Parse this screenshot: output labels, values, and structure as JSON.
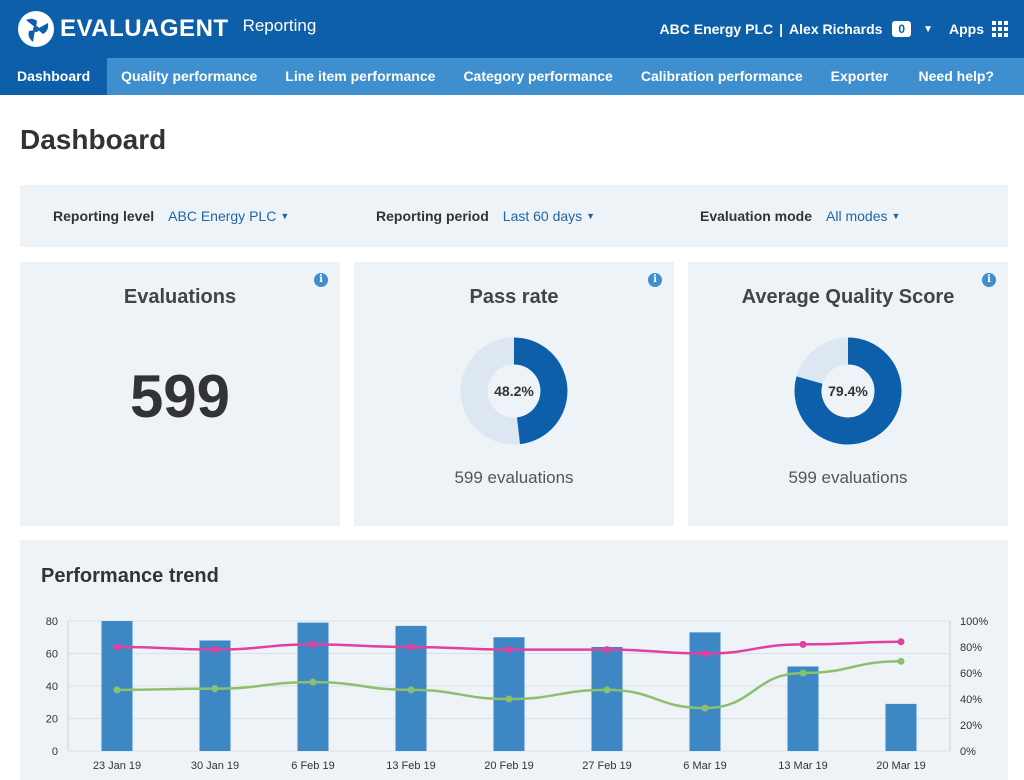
{
  "header": {
    "brand": "EVALUAGENT",
    "product": "Reporting",
    "company": "ABC Energy PLC",
    "separator": "|",
    "user": "Alex Richards",
    "notifications": "0",
    "apps_label": "Apps",
    "logo_icon": "evaluagent-logo-icon",
    "brand_color": "#0d5fa9"
  },
  "nav": {
    "items": [
      {
        "label": "Dashboard",
        "active": true
      },
      {
        "label": "Quality performance"
      },
      {
        "label": "Line item performance"
      },
      {
        "label": "Category performance"
      },
      {
        "label": "Calibration performance"
      },
      {
        "label": "Exporter"
      }
    ],
    "help": "Need help?",
    "nav_color": "#3f8ecd"
  },
  "page": {
    "title": "Dashboard"
  },
  "filters": {
    "reporting_level": {
      "label": "Reporting level",
      "value": "ABC Energy PLC"
    },
    "reporting_period": {
      "label": "Reporting period",
      "value": "Last 60 days"
    },
    "evaluation_mode": {
      "label": "Evaluation mode",
      "value": "All modes"
    }
  },
  "cards": {
    "evaluations": {
      "title": "Evaluations",
      "value": "599"
    },
    "pass_rate": {
      "title": "Pass rate",
      "value_label": "48.2%",
      "fraction": 0.482,
      "sub": "599 evaluations"
    },
    "quality_score": {
      "title": "Average Quality Score",
      "value_label": "79.4%",
      "fraction": 0.794,
      "sub": "599 evaluations"
    }
  },
  "trend": {
    "title": "Performance trend"
  },
  "chart_data": {
    "type": "bar",
    "categories": [
      "23 Jan 19",
      "30 Jan 19",
      "6 Feb 19",
      "13 Feb 19",
      "20 Feb 19",
      "27 Feb 19",
      "6 Mar 19",
      "13 Mar 19",
      "20 Mar 19"
    ],
    "y_ticks": [
      "0",
      "20",
      "40",
      "60",
      "80"
    ],
    "y2_ticks": [
      "0%",
      "20%",
      "40%",
      "60%",
      "80%",
      "100%"
    ],
    "ylim": [
      0,
      80
    ],
    "y2lim": [
      0,
      100
    ],
    "series": [
      {
        "type": "bar",
        "axis": "left",
        "color": "#3d87c4",
        "values": [
          80,
          68,
          79,
          77,
          70,
          64,
          73,
          52,
          29
        ]
      },
      {
        "type": "line",
        "axis": "right",
        "color": "#e040a0",
        "values": [
          80,
          78,
          82,
          80,
          78,
          78,
          75,
          82,
          84
        ]
      },
      {
        "type": "line",
        "axis": "right",
        "color": "#8cc06d",
        "values": [
          47,
          48,
          53,
          47,
          40,
          47,
          33,
          60,
          69
        ]
      }
    ]
  }
}
